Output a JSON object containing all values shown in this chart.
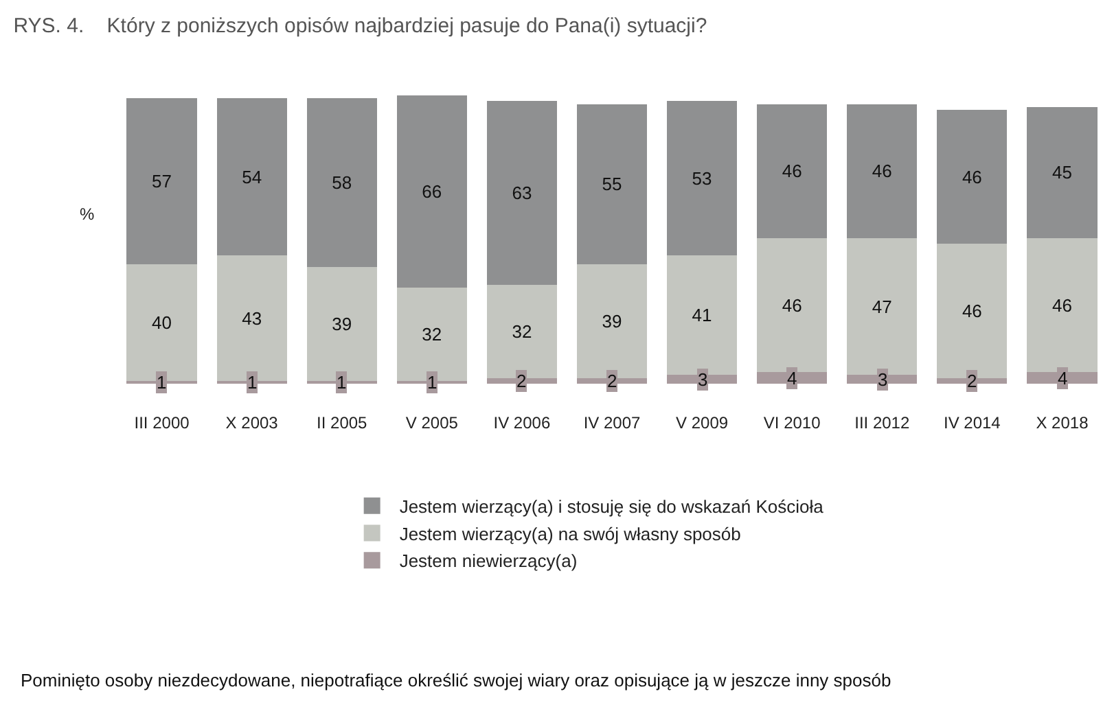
{
  "chart_data": {
    "type": "bar",
    "stacked": true,
    "title": "RYS. 4.    Który z poniższych opisów najbardziej pasuje do Pana(i) sytuacji?",
    "ylabel": "%",
    "categories": [
      "III 2000",
      "X 2003",
      "II 2005",
      "V 2005",
      "IV 2006",
      "IV 2007",
      "V 2009",
      "VI 2010",
      "III 2012",
      "IV 2014",
      "X 2018"
    ],
    "series": [
      {
        "name": "Jestem niewierzący(a)",
        "color": "#a89a9d",
        "values": [
          1,
          1,
          1,
          1,
          2,
          2,
          3,
          4,
          3,
          2,
          4
        ]
      },
      {
        "name": "Jestem wierzący(a) na swój własny sposób",
        "color": "#c4c6c0",
        "values": [
          40,
          43,
          39,
          32,
          32,
          39,
          41,
          46,
          47,
          46,
          46
        ]
      },
      {
        "name": "Jestem wierzący(a) i stosuję się do wskazań Kościoła",
        "color": "#8f9091",
        "values": [
          57,
          54,
          58,
          66,
          63,
          55,
          53,
          46,
          46,
          46,
          45
        ]
      }
    ],
    "data_labels": true,
    "legend": "bottom",
    "annotations": [
      "Pominięto osoby niezdecydowane, niepotrafiące określić swojej wiary oraz opisujące ją w jeszcze inny sposób"
    ]
  }
}
